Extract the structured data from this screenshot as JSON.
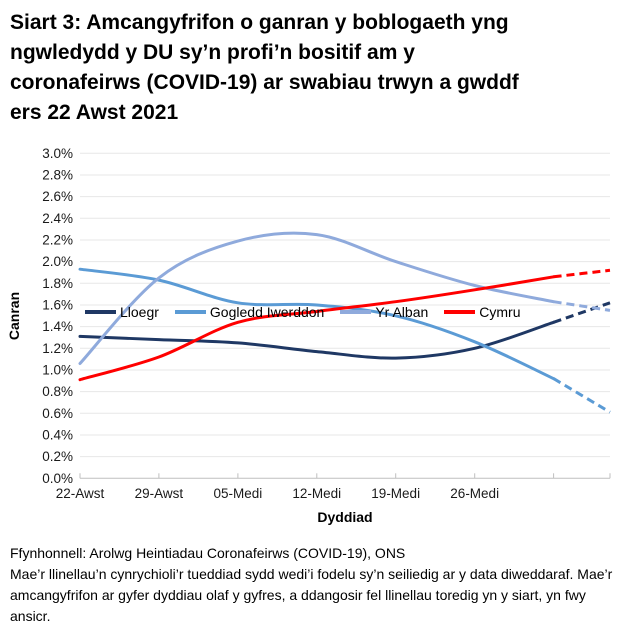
{
  "title": {
    "full": "Siart 3: Amcangyfrifon o ganran y boblogaeth yng ngwledydd y DU sy’n profi’n bositif am y coronafeirws (COVID-19) ar swabiau trwyn a gwddf ers 22 Awst 2021",
    "lines": [
      "Siart 3: Amcangyfrifon o ganran y boblogaeth yng",
      "ngwledydd y DU sy’n profi’n bositif am y",
      "coronafeirws (COVID-19) ar swabiau trwyn a gwddf",
      "ers 22 Awst 2021"
    ]
  },
  "chart_data": {
    "type": "line",
    "title": "Siart 3: Amcangyfrifon o ganran y boblogaeth yng ngwledydd y DU sy’n profi’n bositif am y coronafeirws (COVID-19) ar swabiau trwyn a gwddf ers 22 Awst 2021",
    "xlabel": "Dyddiad",
    "ylabel": "Canran",
    "ylim": [
      0.0,
      3.0
    ],
    "grid": "horizontal",
    "legend_position": "top-inside",
    "y_tick_values": [
      0.0,
      0.2,
      0.4,
      0.6,
      0.8,
      1.0,
      1.2,
      1.4,
      1.6,
      1.8,
      2.0,
      2.2,
      2.4,
      2.6,
      2.8,
      3.0
    ],
    "y_tick_labels": [
      "0.0%",
      "0.2%",
      "0.4%",
      "0.6%",
      "0.8%",
      "1.0%",
      "1.2%",
      "1.4%",
      "1.6%",
      "1.8%",
      "2.0%",
      "2.2%",
      "2.4%",
      "2.6%",
      "2.8%",
      "3.0%"
    ],
    "x_tick_labels": [
      "22-Awst",
      "29-Awst",
      "05-Medi",
      "12-Medi",
      "19-Medi",
      "26-Medi"
    ],
    "x_tick_days": [
      0,
      7,
      14,
      21,
      28,
      35
    ],
    "tick_mark_days": [
      0,
      7,
      14,
      21,
      28,
      35,
      42,
      47
    ],
    "x_range_days": [
      0,
      47
    ],
    "days": [
      0,
      7,
      14,
      21,
      28,
      35,
      42,
      47
    ],
    "dashed_from_index": 6,
    "dashed_meaning": "llinellau toredig = amcangyfrifon mwy ansicr ar gyfer dyddiau olaf y gyfres",
    "series": [
      {
        "name": "Lloegr",
        "color": "#1F3864",
        "values": [
          1.31,
          1.28,
          1.25,
          1.17,
          1.11,
          1.2,
          1.44,
          1.62
        ]
      },
      {
        "name": "Gogledd Iwerddon",
        "color": "#5B9BD5",
        "values": [
          1.93,
          1.83,
          1.62,
          1.6,
          1.5,
          1.26,
          0.92,
          0.61
        ]
      },
      {
        "name": "Yr Alban",
        "color": "#8FAADC",
        "values": [
          1.06,
          1.85,
          2.19,
          2.25,
          2.0,
          1.78,
          1.63,
          1.55
        ]
      },
      {
        "name": "Cymru",
        "color": "#FF0000",
        "values": [
          0.91,
          1.12,
          1.44,
          1.54,
          1.63,
          1.74,
          1.86,
          1.92
        ]
      }
    ],
    "colors": {
      "grid": "#E7E7E7",
      "axis": "#BFBFBF"
    }
  },
  "footer": {
    "source": "Ffynhonnell: Arolwg Heintiadau Coronafeirws (COVID-19), ONS",
    "note": "Mae’r llinellau’n cynrychioli’r tueddiad sydd wedi’i fodelu sy’n seiliedig ar y data diweddaraf. Mae’r amcangyfrifon ar gyfer dyddiau olaf y gyfres, a ddangosir fel llinellau toredig yn y siart, yn fwy ansicr."
  }
}
